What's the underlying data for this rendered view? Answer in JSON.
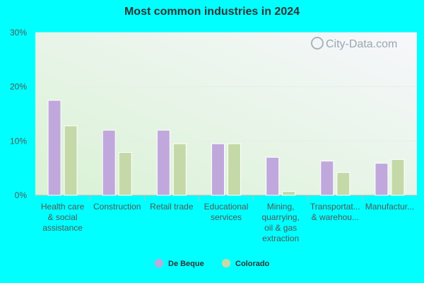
{
  "chart_data": {
    "type": "bar",
    "title": "Most common industries in 2024",
    "categories": [
      [
        "Health care",
        "& social",
        "assistance"
      ],
      [
        "Construction"
      ],
      [
        "Retail trade"
      ],
      [
        "Educational",
        "services"
      ],
      [
        "Mining,",
        "quarrying,",
        "oil & gas",
        "extraction"
      ],
      [
        "Transportat...",
        "& warehou..."
      ],
      [
        "Manufactur..."
      ]
    ],
    "series": [
      {
        "name": "De Beque",
        "color": "#c0a8dc",
        "values": [
          17.5,
          12.0,
          12.0,
          9.5,
          7.0,
          6.3,
          5.9
        ]
      },
      {
        "name": "Colorado",
        "color": "#c5d9a8",
        "values": [
          12.8,
          7.9,
          9.5,
          9.5,
          0.7,
          4.2,
          6.6
        ]
      }
    ],
    "ylim": [
      0,
      30
    ],
    "yticks": [
      0,
      10,
      20,
      30
    ],
    "ytick_labels": [
      "0%",
      "10%",
      "20%",
      "30%"
    ],
    "legend_position": "bottom",
    "grid": true
  },
  "watermark": "City-Data.com"
}
